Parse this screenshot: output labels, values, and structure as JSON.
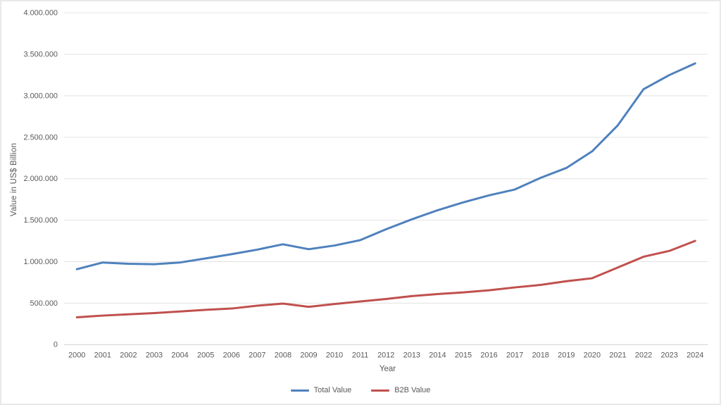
{
  "chart_data": {
    "type": "line",
    "x": [
      "2000",
      "2001",
      "2002",
      "2003",
      "2004",
      "2005",
      "2006",
      "2007",
      "2008",
      "2009",
      "2010",
      "2011",
      "2012",
      "2013",
      "2014",
      "2015",
      "2016",
      "2017",
      "2018",
      "2019",
      "2020",
      "2021",
      "2022",
      "2023",
      "2024"
    ],
    "series": [
      {
        "name": "Total Value",
        "color": "#4F81BD",
        "values": [
          910000,
          990000,
          975000,
          970000,
          990000,
          1040000,
          1090000,
          1145000,
          1210000,
          1150000,
          1195000,
          1260000,
          1390000,
          1510000,
          1620000,
          1715000,
          1800000,
          1870000,
          2010000,
          2130000,
          2330000,
          2645000,
          3080000,
          3250000,
          3390000
        ]
      },
      {
        "name": "B2B Value",
        "color": "#C0504D",
        "values": [
          330000,
          350000,
          365000,
          380000,
          400000,
          420000,
          435000,
          470000,
          495000,
          455000,
          490000,
          520000,
          550000,
          585000,
          610000,
          630000,
          655000,
          690000,
          720000,
          765000,
          800000,
          930000,
          1060000,
          1130000,
          1250000
        ]
      }
    ],
    "title": "",
    "xlabel": "Year",
    "ylabel": "Value in US$ Billion",
    "ylim": [
      0,
      4000000
    ],
    "ytick_step": 500000,
    "ytick_labels": [
      "0",
      "500.000",
      "1.000.000",
      "1.500.000",
      "2.000.000",
      "2.500.000",
      "3.000.000",
      "3.500.000",
      "4.000.000"
    ],
    "legend_position": "bottom",
    "grid": "horizontal",
    "colors": {
      "gridline": "#E3E3E3",
      "axis_line": "#CFCFCF",
      "tick_text": "#595959"
    }
  }
}
